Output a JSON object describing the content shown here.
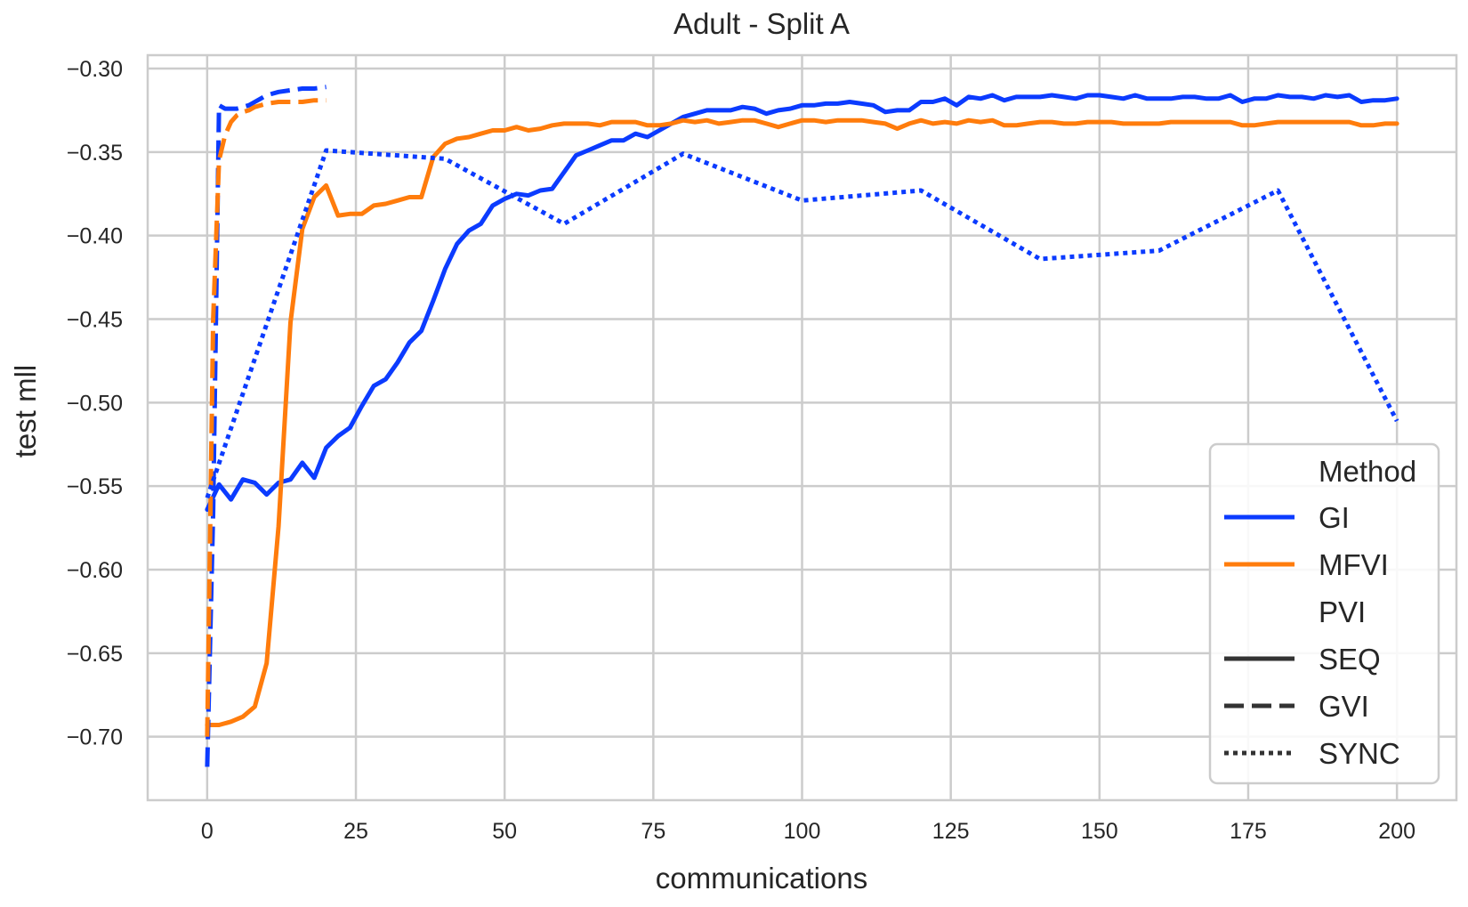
{
  "chart_data": {
    "type": "line",
    "title": "Adult - Split A",
    "xlabel": "communications",
    "ylabel": "test mll",
    "xlim": [
      -10,
      210
    ],
    "ylim": [
      -0.738,
      -0.292
    ],
    "xticks": [
      0,
      25,
      50,
      75,
      100,
      125,
      150,
      175,
      200
    ],
    "xtick_labels": [
      "0",
      "25",
      "50",
      "75",
      "100",
      "125",
      "150",
      "175",
      "200"
    ],
    "yticks": [
      -0.3,
      -0.35,
      -0.4,
      -0.45,
      -0.5,
      -0.55,
      -0.6,
      -0.65,
      -0.7
    ],
    "ytick_labels": [
      "−0.30",
      "−0.35",
      "−0.40",
      "−0.45",
      "−0.50",
      "−0.55",
      "−0.60",
      "−0.65",
      "−0.70"
    ],
    "grid": true,
    "legend": {
      "placement": "lower-right",
      "method_title": "Method",
      "methods": [
        {
          "name": "GI",
          "color": "#0b3bff"
        },
        {
          "name": "MFVI",
          "color": "#ff7c0c"
        }
      ],
      "pvi_title": "PVI",
      "styles": [
        {
          "name": "SEQ",
          "dash": "solid"
        },
        {
          "name": "GVI",
          "dash": "dashed"
        },
        {
          "name": "SYNC",
          "dash": "dotted"
        }
      ],
      "style_color": "#333333"
    },
    "series": [
      {
        "name": "GI",
        "style": "SEQ",
        "color": "#0b3bff",
        "dash": "solid",
        "x": [
          0,
          2,
          4,
          6,
          8,
          10,
          12,
          14,
          16,
          18,
          20,
          22,
          24,
          26,
          28,
          30,
          32,
          34,
          36,
          38,
          40,
          42,
          44,
          46,
          48,
          50,
          52,
          54,
          56,
          58,
          60,
          62,
          64,
          66,
          68,
          70,
          72,
          74,
          76,
          78,
          80,
          82,
          84,
          86,
          88,
          90,
          92,
          94,
          96,
          98,
          100,
          102,
          104,
          106,
          108,
          110,
          112,
          114,
          116,
          118,
          120,
          122,
          124,
          126,
          128,
          130,
          132,
          134,
          136,
          138,
          140,
          142,
          144,
          146,
          148,
          150,
          152,
          154,
          156,
          158,
          160,
          162,
          164,
          166,
          168,
          170,
          172,
          174,
          176,
          178,
          180,
          182,
          184,
          186,
          188,
          190,
          192,
          194,
          196,
          198,
          200
        ],
        "y": [
          -0.564,
          -0.549,
          -0.558,
          -0.546,
          -0.548,
          -0.555,
          -0.548,
          -0.546,
          -0.536,
          -0.545,
          -0.527,
          -0.52,
          -0.515,
          -0.502,
          -0.49,
          -0.486,
          -0.476,
          -0.464,
          -0.457,
          -0.439,
          -0.42,
          -0.405,
          -0.397,
          -0.393,
          -0.382,
          -0.378,
          -0.375,
          -0.376,
          -0.373,
          -0.372,
          -0.362,
          -0.352,
          -0.349,
          -0.346,
          -0.343,
          -0.343,
          -0.339,
          -0.341,
          -0.337,
          -0.333,
          -0.329,
          -0.327,
          -0.325,
          -0.325,
          -0.325,
          -0.323,
          -0.324,
          -0.327,
          -0.325,
          -0.324,
          -0.322,
          -0.322,
          -0.321,
          -0.321,
          -0.32,
          -0.321,
          -0.322,
          -0.326,
          -0.325,
          -0.325,
          -0.32,
          -0.32,
          -0.318,
          -0.322,
          -0.317,
          -0.318,
          -0.316,
          -0.319,
          -0.317,
          -0.317,
          -0.317,
          -0.316,
          -0.317,
          -0.318,
          -0.316,
          -0.316,
          -0.317,
          -0.318,
          -0.316,
          -0.318,
          -0.318,
          -0.318,
          -0.317,
          -0.317,
          -0.318,
          -0.318,
          -0.316,
          -0.32,
          -0.318,
          -0.318,
          -0.316,
          -0.317,
          -0.317,
          -0.318,
          -0.316,
          -0.317,
          -0.316,
          -0.32,
          -0.319,
          -0.319,
          -0.318
        ]
      },
      {
        "name": "MFVI",
        "style": "SEQ",
        "color": "#ff7c0c",
        "dash": "solid",
        "x": [
          0,
          2,
          4,
          6,
          8,
          10,
          12,
          14,
          16,
          18,
          20,
          22,
          24,
          26,
          28,
          30,
          32,
          34,
          36,
          38,
          40,
          42,
          44,
          46,
          48,
          50,
          52,
          54,
          56,
          58,
          60,
          62,
          64,
          66,
          68,
          70,
          72,
          74,
          76,
          78,
          80,
          82,
          84,
          86,
          88,
          90,
          92,
          94,
          96,
          98,
          100,
          102,
          104,
          106,
          108,
          110,
          112,
          114,
          116,
          118,
          120,
          122,
          124,
          126,
          128,
          130,
          132,
          134,
          136,
          138,
          140,
          142,
          144,
          146,
          148,
          150,
          152,
          154,
          156,
          158,
          160,
          162,
          164,
          166,
          168,
          170,
          172,
          174,
          176,
          178,
          180,
          182,
          184,
          186,
          188,
          190,
          192,
          194,
          196,
          198,
          200
        ],
        "y": [
          -0.693,
          -0.693,
          -0.691,
          -0.688,
          -0.682,
          -0.656,
          -0.574,
          -0.452,
          -0.396,
          -0.377,
          -0.37,
          -0.388,
          -0.387,
          -0.387,
          -0.382,
          -0.381,
          -0.379,
          -0.377,
          -0.377,
          -0.353,
          -0.345,
          -0.342,
          -0.341,
          -0.339,
          -0.337,
          -0.337,
          -0.335,
          -0.337,
          -0.336,
          -0.334,
          -0.333,
          -0.333,
          -0.333,
          -0.334,
          -0.332,
          -0.332,
          -0.332,
          -0.334,
          -0.334,
          -0.333,
          -0.331,
          -0.332,
          -0.331,
          -0.333,
          -0.332,
          -0.331,
          -0.331,
          -0.333,
          -0.335,
          -0.333,
          -0.331,
          -0.331,
          -0.332,
          -0.331,
          -0.331,
          -0.331,
          -0.332,
          -0.333,
          -0.336,
          -0.333,
          -0.331,
          -0.333,
          -0.332,
          -0.333,
          -0.331,
          -0.332,
          -0.331,
          -0.334,
          -0.334,
          -0.333,
          -0.332,
          -0.332,
          -0.333,
          -0.333,
          -0.332,
          -0.332,
          -0.332,
          -0.333,
          -0.333,
          -0.333,
          -0.333,
          -0.332,
          -0.332,
          -0.332,
          -0.332,
          -0.332,
          -0.332,
          -0.334,
          -0.334,
          -0.333,
          -0.332,
          -0.332,
          -0.332,
          -0.332,
          -0.332,
          -0.332,
          -0.332,
          -0.334,
          -0.334,
          -0.333,
          -0.333
        ]
      },
      {
        "name": "GI",
        "style": "GVI",
        "color": "#0b3bff",
        "dash": "dashed",
        "x": [
          0,
          1,
          2,
          3,
          4,
          5,
          6,
          7,
          8,
          9,
          10,
          12,
          14,
          16,
          18,
          20
        ],
        "y": [
          -0.718,
          -0.565,
          -0.322,
          -0.324,
          -0.324,
          -0.324,
          -0.323,
          -0.322,
          -0.32,
          -0.318,
          -0.316,
          -0.314,
          -0.313,
          -0.312,
          -0.312,
          -0.311
        ]
      },
      {
        "name": "MFVI",
        "style": "GVI",
        "color": "#ff7c0c",
        "dash": "dashed",
        "x": [
          0,
          1,
          2,
          3,
          4,
          5,
          6,
          7,
          8,
          9,
          10,
          12,
          14,
          16,
          18,
          20
        ],
        "y": [
          -0.7,
          -0.45,
          -0.355,
          -0.34,
          -0.332,
          -0.328,
          -0.326,
          -0.325,
          -0.323,
          -0.322,
          -0.321,
          -0.32,
          -0.32,
          -0.32,
          -0.319,
          -0.319
        ]
      },
      {
        "name": "GI",
        "style": "SYNC",
        "color": "#0b3bff",
        "dash": "dotted",
        "x": [
          0,
          20,
          40,
          60,
          80,
          100,
          120,
          140,
          160,
          180,
          200
        ],
        "y": [
          -0.557,
          -0.349,
          -0.354,
          -0.393,
          -0.351,
          -0.379,
          -0.373,
          -0.414,
          -0.409,
          -0.373,
          -0.511
        ]
      }
    ]
  }
}
